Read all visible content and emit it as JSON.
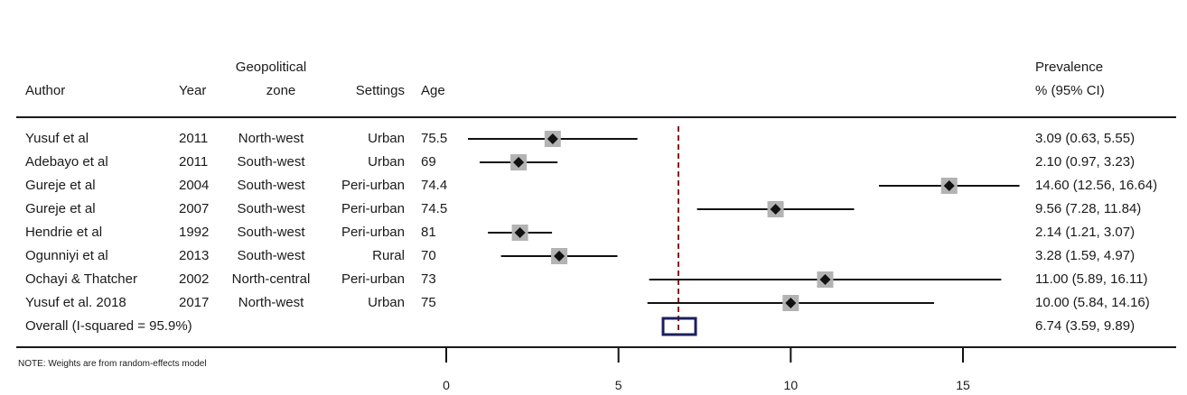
{
  "header": {
    "author": "Author",
    "year": "Year",
    "zone_line1": "Geopolitical",
    "zone_line2": "zone",
    "settings": "Settings",
    "age": "Age",
    "prev_line1": "Prevalence",
    "prev_line2": "% (95% CI)"
  },
  "rows": [
    {
      "author": "Yusuf et al",
      "year": "2011",
      "zone": "North-west",
      "settings": "Urban",
      "age": "75.5",
      "ci_text": "3.09 (0.63, 5.55)"
    },
    {
      "author": "Adebayo et al",
      "year": "2011",
      "zone": "South-west",
      "settings": "Urban",
      "age": "69",
      "ci_text": "2.10 (0.97, 3.23)"
    },
    {
      "author": "Gureje et al",
      "year": "2004",
      "zone": "South-west",
      "settings": "Peri-urban",
      "age": "74.4",
      "ci_text": "14.60 (12.56, 16.64)"
    },
    {
      "author": "Gureje et al",
      "year": "2007",
      "zone": "South-west",
      "settings": "Peri-urban",
      "age": "74.5",
      "ci_text": "9.56 (7.28, 11.84)"
    },
    {
      "author": "Hendrie et al",
      "year": "1992",
      "zone": "South-west",
      "settings": "Peri-urban",
      "age": "81",
      "ci_text": "2.14 (1.21, 3.07)"
    },
    {
      "author": "Ogunniyi et al",
      "year": "2013",
      "zone": "South-west",
      "settings": "Rural",
      "age": "70",
      "ci_text": "3.28 (1.59, 4.97)"
    },
    {
      "author": "Ochayi & Thatcher",
      "year": "2002",
      "zone": "North-central",
      "settings": "Peri-urban",
      "age": "73",
      "ci_text": "11.00 (5.89, 16.11)"
    },
    {
      "author": "Yusuf et al. 2018",
      "year": "2017",
      "zone": "North-west",
      "settings": "Urban",
      "age": "75",
      "ci_text": "10.00 (5.84, 14.16)"
    }
  ],
  "overall": {
    "label": "Overall  (I-squared = 95.9%)",
    "ci_text": "6.74 (3.59, 9.89)"
  },
  "note": "NOTE: Weights are from random-effects model",
  "colors": {
    "marker": "#111111",
    "weight_box": "#b3b3b3",
    "ref_line": "#8b1a1a",
    "overall_box": "#1b1f5e"
  },
  "chart_data": {
    "type": "scatter",
    "subtype": "forest-plot",
    "xlim": [
      0,
      17
    ],
    "xticks": [
      0,
      5,
      10,
      15
    ],
    "xtick_labels": [
      "0",
      "5",
      "10",
      "15"
    ],
    "reference_line": 6.74,
    "series": [
      {
        "points": [
          {
            "label": "Yusuf et al",
            "estimate": 3.09,
            "lower": 0.63,
            "upper": 5.55
          },
          {
            "label": "Adebayo et al",
            "estimate": 2.1,
            "lower": 0.97,
            "upper": 3.23
          },
          {
            "label": "Gureje et al",
            "estimate": 14.6,
            "lower": 12.56,
            "upper": 16.64
          },
          {
            "label": "Gureje et al",
            "estimate": 9.56,
            "lower": 7.28,
            "upper": 11.84
          },
          {
            "label": "Hendrie et al",
            "estimate": 2.14,
            "lower": 1.21,
            "upper": 3.07
          },
          {
            "label": "Ogunniyi et al",
            "estimate": 3.28,
            "lower": 1.59,
            "upper": 4.97
          },
          {
            "label": "Ochayi & Thatcher",
            "estimate": 11.0,
            "lower": 5.89,
            "upper": 16.11
          },
          {
            "label": "Yusuf et al. 2018",
            "estimate": 10.0,
            "lower": 5.84,
            "upper": 14.16
          }
        ]
      }
    ],
    "overall": {
      "estimate": 6.74,
      "lower": 3.59,
      "upper": 9.89
    }
  }
}
